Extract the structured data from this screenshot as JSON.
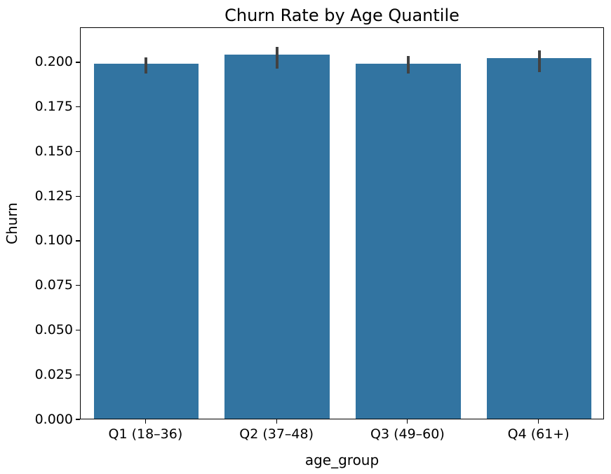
{
  "chart_data": {
    "type": "bar",
    "title": "Churn Rate by Age Quantile",
    "xlabel": "age_group",
    "ylabel": "Churn",
    "categories": [
      "Q1 (18–36)",
      "Q2 (37–48)",
      "Q3 (49–60)",
      "Q4 (61+)"
    ],
    "values": [
      0.199,
      0.204,
      0.199,
      0.202
    ],
    "error_bars": [
      [
        0.194,
        0.203
      ],
      [
        0.197,
        0.209
      ],
      [
        0.194,
        0.204
      ],
      [
        0.195,
        0.207
      ]
    ],
    "ylim": [
      0,
      0.2196
    ],
    "yticks": [
      0.0,
      0.025,
      0.05,
      0.075,
      0.1,
      0.125,
      0.15,
      0.175,
      0.2
    ],
    "ytick_labels": [
      "0.000",
      "0.025",
      "0.050",
      "0.075",
      "0.100",
      "0.125",
      "0.150",
      "0.175",
      "0.200"
    ],
    "bar_width_fraction": 0.8,
    "bar_color": "#3274a1",
    "error_bar_color": "#424242",
    "axis_color": "#000000",
    "grid": false,
    "legend": null
  }
}
